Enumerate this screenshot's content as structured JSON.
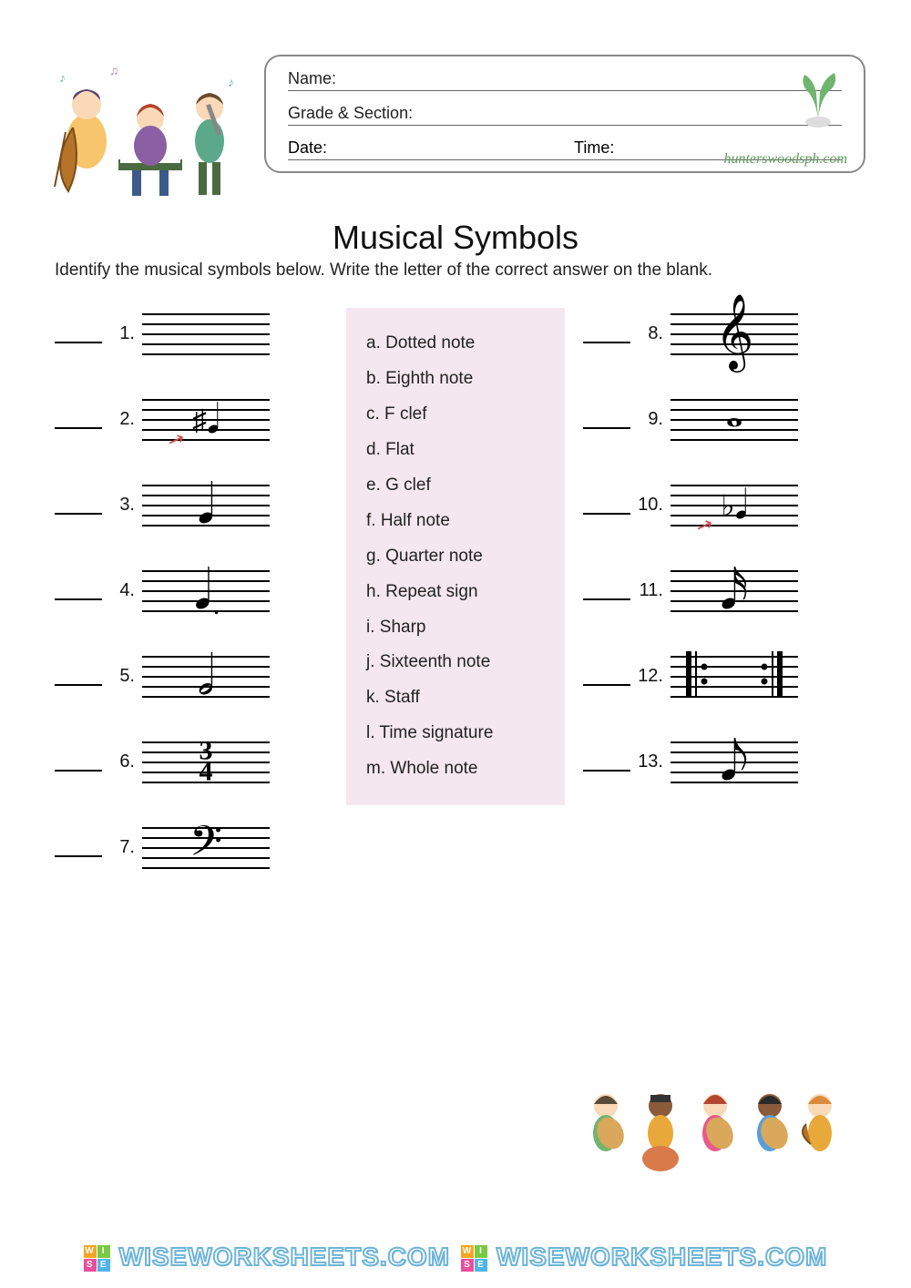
{
  "header": {
    "name_label": "Name:",
    "grade_label": "Grade & Section:",
    "date_label": "Date:",
    "time_label": "Time:",
    "signature": "hunterswoodsph.com"
  },
  "title": "Musical Symbols",
  "instructions": "Identify the musical symbols below. Write the letter of the correct answer on the blank.",
  "answers": {
    "a": "a. Dotted note",
    "b": "b. Eighth note",
    "c": "c. F clef",
    "d": "d. Flat",
    "e": "e. G clef",
    "f": "f. Half note",
    "g": "g. Quarter note",
    "h": "h. Repeat sign",
    "i": "i. Sharp",
    "j": "j. Sixteenth note",
    "k": "k. Staff",
    "l": "l. Time signature",
    "m": "m. Whole note"
  },
  "left_items": [
    {
      "n": "1.",
      "sym": ""
    },
    {
      "n": "2.",
      "sym": "♯",
      "extra": "note",
      "arrow": true
    },
    {
      "n": "3.",
      "sym": "𝅘𝅥"
    },
    {
      "n": "4.",
      "sym": "𝅘𝅥 ."
    },
    {
      "n": "5.",
      "sym": "𝅗𝅥"
    },
    {
      "n": "6.",
      "sym": "3/4"
    },
    {
      "n": "7.",
      "sym": "𝄢"
    }
  ],
  "right_items": [
    {
      "n": "8.",
      "sym": "𝄞"
    },
    {
      "n": "9.",
      "sym": "𝅝"
    },
    {
      "n": "10.",
      "sym": "♭",
      "extra": "note",
      "arrow": true
    },
    {
      "n": "11.",
      "sym": "𝅘𝅥𝅯"
    },
    {
      "n": "12.",
      "sym": "repeat"
    },
    {
      "n": "13.",
      "sym": "𝅘𝅥𝅮"
    }
  ],
  "watermark": "WISEWORKSHEETS.COM",
  "watermark_logo_colors": [
    "#f5a623",
    "#7ac943",
    "#e94f9a",
    "#4fb4e9"
  ],
  "watermark_letters": [
    "W",
    "I",
    "S",
    "E"
  ],
  "colors": {
    "answer_bg": "#f5e7ef",
    "text": "#111111",
    "arrow": "#d94f4f",
    "wm_stroke": "#6db4d8"
  }
}
